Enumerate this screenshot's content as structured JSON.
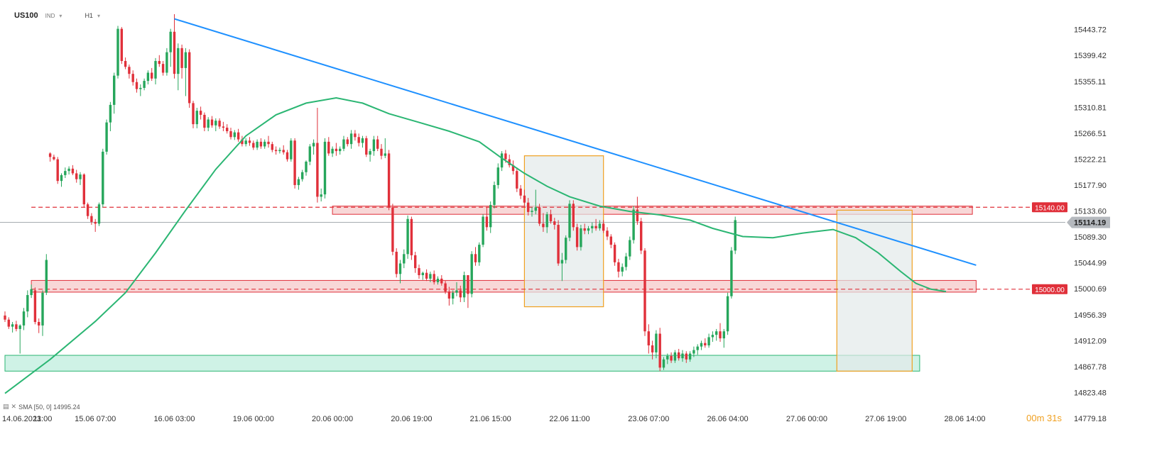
{
  "header": {
    "symbol": "US100",
    "type_tag": "IND",
    "timeframe": "H1"
  },
  "indicator": {
    "label": "SMA [50, 0] 14995.24"
  },
  "timer": {
    "label": "00m 31s"
  },
  "colors": {
    "bull": "#26a65b",
    "bear": "#e0303a",
    "sma": "#2bb673",
    "trend": "#1e90ff",
    "zone_red_fill": "#f6c9c9",
    "zone_red_border": "#e0303a",
    "zone_green_fill": "#bfeedd",
    "zone_green_border": "#2bb673",
    "box_border": "#f0a020",
    "box_fill": "#e3e9ea"
  },
  "chart_data": {
    "type": "candlestick",
    "instrument": "US100",
    "timeframe": "H1",
    "y_axis": {
      "range": [
        14779.18,
        15470
      ],
      "ticks": [
        15443.72,
        15399.42,
        15355.11,
        15310.81,
        15266.51,
        15222.21,
        15177.9,
        15133.6,
        15089.3,
        15044.99,
        15000.69,
        14956.39,
        14912.09,
        14867.78,
        14823.48,
        14779.18
      ],
      "tick_labels": [
        "15443.72",
        "15399.42",
        "15355.11",
        "15310.81",
        "15266.51",
        "15222.21",
        "15177.90",
        "15133.60",
        "15089.30",
        "15044.99",
        "15000.69",
        "14956.39",
        "14912.09",
        "14867.78",
        "14823.48",
        "14779.18"
      ]
    },
    "x_axis": {
      "labels": [
        "14.06.2023",
        "11:00",
        "15.06 07:00",
        "16.06 03:00",
        "19.06 00:00",
        "20.06 00:00",
        "20.06 19:00",
        "21.06 15:00",
        "22.06 11:00",
        "23.06 07:00",
        "26.06 04:00",
        "27.06 00:00",
        "27.06 19:00",
        "28.06 14:00"
      ],
      "label_bar_index": [
        0,
        10,
        24,
        45,
        66,
        87,
        108,
        129,
        150,
        171,
        192,
        213,
        234,
        255
      ]
    },
    "candles_ohlc": [
      [
        14955,
        14962,
        14944,
        14948
      ],
      [
        14948,
        14952,
        14932,
        14936
      ],
      [
        14936,
        14944,
        14926,
        14940
      ],
      [
        14940,
        14946,
        14928,
        14932
      ],
      [
        14932,
        14940,
        14890,
        14938
      ],
      [
        14938,
        14968,
        14930,
        14962
      ],
      [
        14962,
        14998,
        14952,
        14990
      ],
      [
        14990,
        15008,
        14985,
        15000
      ],
      [
        14998,
        15003,
        14940,
        14944
      ],
      [
        14944,
        14950,
        14925,
        14938
      ],
      [
        14938,
        14998,
        14920,
        14994
      ],
      [
        14994,
        15060,
        14990,
        15050
      ],
      [
        15232,
        15234,
        15218,
        15226
      ],
      [
        15226,
        15230,
        15220,
        15222
      ],
      [
        15222,
        15226,
        15180,
        15185
      ],
      [
        15185,
        15198,
        15175,
        15195
      ],
      [
        15195,
        15208,
        15190,
        15202
      ],
      [
        15202,
        15210,
        15196,
        15206
      ],
      [
        15206,
        15212,
        15195,
        15198
      ],
      [
        15198,
        15204,
        15182,
        15188
      ],
      [
        15188,
        15200,
        15178,
        15196
      ],
      [
        15196,
        15198,
        15140,
        15145
      ],
      [
        15145,
        15148,
        15120,
        15125
      ],
      [
        15125,
        15130,
        15110,
        15115
      ],
      [
        15115,
        15120,
        15098,
        15112
      ],
      [
        15112,
        15148,
        15108,
        15145
      ],
      [
        15145,
        15240,
        15140,
        15235
      ],
      [
        15235,
        15290,
        15230,
        15285
      ],
      [
        15285,
        15320,
        15270,
        15315
      ],
      [
        15315,
        15370,
        15300,
        15365
      ],
      [
        15365,
        15450,
        15360,
        15445
      ],
      [
        15445,
        15448,
        15385,
        15390
      ],
      [
        15390,
        15396,
        15376,
        15380
      ],
      [
        15380,
        15384,
        15360,
        15368
      ],
      [
        15368,
        15374,
        15348,
        15354
      ],
      [
        15354,
        15360,
        15336,
        15342
      ],
      [
        15342,
        15350,
        15330,
        15344
      ],
      [
        15344,
        15360,
        15340,
        15356
      ],
      [
        15356,
        15374,
        15350,
        15370
      ],
      [
        15370,
        15378,
        15356,
        15360
      ],
      [
        15360,
        15395,
        15350,
        15390
      ],
      [
        15390,
        15400,
        15380,
        15385
      ],
      [
        15385,
        15390,
        15365,
        15370
      ],
      [
        15370,
        15412,
        15365,
        15405
      ],
      [
        15405,
        15445,
        15380,
        15440
      ],
      [
        15440,
        15470,
        15360,
        15368
      ],
      [
        15368,
        15420,
        15340,
        15412
      ],
      [
        15412,
        15418,
        15360,
        15378
      ],
      [
        15378,
        15412,
        15330,
        15405
      ],
      [
        15405,
        15410,
        15310,
        15318
      ],
      [
        15318,
        15322,
        15275,
        15282
      ],
      [
        15282,
        15310,
        15275,
        15305
      ],
      [
        15305,
        15312,
        15290,
        15298
      ],
      [
        15298,
        15302,
        15270,
        15276
      ],
      [
        15276,
        15294,
        15270,
        15290
      ],
      [
        15290,
        15296,
        15276,
        15280
      ],
      [
        15280,
        15292,
        15270,
        15288
      ],
      [
        15288,
        15292,
        15274,
        15278
      ],
      [
        15278,
        15286,
        15270,
        15276
      ],
      [
        15276,
        15282,
        15266,
        15270
      ],
      [
        15270,
        15276,
        15256,
        15260
      ],
      [
        15260,
        15272,
        15255,
        15268
      ],
      [
        15268,
        15274,
        15252,
        15256
      ],
      [
        15256,
        15262,
        15244,
        15248
      ],
      [
        15248,
        15258,
        15244,
        15254
      ],
      [
        15254,
        15260,
        15245,
        15250
      ],
      [
        15250,
        15254,
        15238,
        15242
      ],
      [
        15242,
        15256,
        15238,
        15252
      ],
      [
        15252,
        15258,
        15240,
        15244
      ],
      [
        15244,
        15256,
        15240,
        15252
      ],
      [
        15252,
        15262,
        15242,
        15248
      ],
      [
        15248,
        15252,
        15234,
        15238
      ],
      [
        15238,
        15244,
        15230,
        15236
      ],
      [
        15236,
        15242,
        15232,
        15238
      ],
      [
        15238,
        15246,
        15230,
        15234
      ],
      [
        15234,
        15238,
        15218,
        15222
      ],
      [
        15222,
        15258,
        15218,
        15254
      ],
      [
        15254,
        15258,
        15172,
        15178
      ],
      [
        15178,
        15192,
        15170,
        15188
      ],
      [
        15188,
        15204,
        15184,
        15200
      ],
      [
        15200,
        15220,
        15194,
        15218
      ],
      [
        15218,
        15248,
        15212,
        15244
      ],
      [
        15244,
        15256,
        15230,
        15250
      ],
      [
        15250,
        15310,
        15148,
        15158
      ],
      [
        15158,
        15172,
        15150,
        15162
      ],
      [
        15162,
        15258,
        15155,
        15252
      ],
      [
        15252,
        15260,
        15228,
        15232
      ],
      [
        15232,
        15244,
        15226,
        15240
      ],
      [
        15240,
        15250,
        15228,
        15236
      ],
      [
        15236,
        15244,
        15230,
        15240
      ],
      [
        15240,
        15262,
        15236,
        15256
      ],
      [
        15256,
        15260,
        15244,
        15248
      ],
      [
        15248,
        15272,
        15240,
        15266
      ],
      [
        15266,
        15272,
        15254,
        15260
      ],
      [
        15260,
        15266,
        15244,
        15250
      ],
      [
        15250,
        15262,
        15242,
        15258
      ],
      [
        15258,
        15262,
        15226,
        15230
      ],
      [
        15230,
        15240,
        15218,
        15236
      ],
      [
        15236,
        15262,
        15228,
        15256
      ],
      [
        15256,
        15262,
        15236,
        15240
      ],
      [
        15240,
        15248,
        15222,
        15228
      ],
      [
        15228,
        15258,
        15224,
        15232
      ],
      [
        15232,
        15238,
        15135,
        15140
      ],
      [
        15140,
        15146,
        15058,
        15064
      ],
      [
        15064,
        15070,
        15020,
        15026
      ],
      [
        15026,
        15050,
        15010,
        15044
      ],
      [
        15044,
        15068,
        15036,
        15060
      ],
      [
        15060,
        15126,
        15052,
        15120
      ],
      [
        15120,
        15124,
        15050,
        15058
      ],
      [
        15058,
        15064,
        15028,
        15036
      ],
      [
        15036,
        15042,
        15018,
        15024
      ],
      [
        15024,
        15030,
        15016,
        15028
      ],
      [
        15028,
        15034,
        15014,
        15018
      ],
      [
        15018,
        15030,
        15012,
        15026
      ],
      [
        15026,
        15032,
        15008,
        15012
      ],
      [
        15012,
        15022,
        15008,
        15018
      ],
      [
        15018,
        15024,
        15006,
        15010
      ],
      [
        15010,
        15014,
        14992,
        14996
      ],
      [
        14996,
        15004,
        14972,
        14984
      ],
      [
        14984,
        14998,
        14974,
        14994
      ],
      [
        14994,
        15012,
        14988,
        14998
      ],
      [
        14998,
        15006,
        14978,
        14986
      ],
      [
        14986,
        15030,
        14978,
        15024
      ],
      [
        15024,
        15004,
        14968,
        14992
      ],
      [
        14992,
        15065,
        14986,
        15060
      ],
      [
        15060,
        15072,
        15040,
        15046
      ],
      [
        15046,
        15080,
        15040,
        15076
      ],
      [
        15076,
        15128,
        15072,
        15124
      ],
      [
        15124,
        15140,
        15100,
        15106
      ],
      [
        15106,
        15150,
        15096,
        15144
      ],
      [
        15144,
        15184,
        15138,
        15178
      ],
      [
        15178,
        15215,
        15172,
        15208
      ],
      [
        15208,
        15236,
        15202,
        15232
      ],
      [
        15232,
        15238,
        15216,
        15222
      ],
      [
        15222,
        15230,
        15208,
        15212
      ],
      [
        15212,
        15220,
        15196,
        15202
      ],
      [
        15202,
        15208,
        15166,
        15172
      ],
      [
        15172,
        15178,
        15154,
        15160
      ],
      [
        15160,
        15170,
        15140,
        15148
      ],
      [
        15148,
        15156,
        15126,
        15132
      ],
      [
        15132,
        15140,
        15124,
        15134
      ],
      [
        15134,
        15170,
        15128,
        15140
      ],
      [
        15140,
        15146,
        15108,
        15112
      ],
      [
        15112,
        15130,
        15098,
        15106
      ],
      [
        15106,
        15132,
        15096,
        15128
      ],
      [
        15128,
        15136,
        15112,
        15116
      ],
      [
        15116,
        15122,
        15102,
        15110
      ],
      [
        15110,
        15118,
        15040,
        15044
      ],
      [
        15044,
        15062,
        15014,
        15050
      ],
      [
        15050,
        15092,
        15044,
        15088
      ],
      [
        15088,
        15152,
        15082,
        15146
      ],
      [
        15146,
        15152,
        15100,
        15106
      ],
      [
        15106,
        15112,
        15066,
        15072
      ],
      [
        15072,
        15110,
        15066,
        15104
      ],
      [
        15104,
        15112,
        15094,
        15100
      ],
      [
        15100,
        15108,
        15094,
        15104
      ],
      [
        15104,
        15114,
        15096,
        15108
      ],
      [
        15108,
        15120,
        15100,
        15104
      ],
      [
        15104,
        15118,
        15100,
        15112
      ],
      [
        15112,
        15118,
        15096,
        15100
      ],
      [
        15100,
        15106,
        15084,
        15090
      ],
      [
        15090,
        15094,
        15070,
        15076
      ],
      [
        15076,
        15080,
        15040,
        15046
      ],
      [
        15046,
        15052,
        15020,
        15030
      ],
      [
        15030,
        15044,
        15022,
        15038
      ],
      [
        15038,
        15062,
        15032,
        15056
      ],
      [
        15056,
        15090,
        15050,
        15084
      ],
      [
        15084,
        15142,
        15078,
        15136
      ],
      [
        15136,
        15158,
        15110,
        15116
      ],
      [
        15116,
        15122,
        15060,
        15066
      ],
      [
        15066,
        15070,
        14920,
        14928
      ],
      [
        14928,
        14940,
        14890,
        14904
      ],
      [
        14904,
        14912,
        14880,
        14892
      ],
      [
        14892,
        14930,
        14882,
        14924
      ],
      [
        14924,
        14934,
        14860,
        14866
      ],
      [
        14866,
        14884,
        14862,
        14880
      ],
      [
        14880,
        14890,
        14872,
        14886
      ],
      [
        14886,
        14892,
        14874,
        14878
      ],
      [
        14878,
        14896,
        14874,
        14892
      ],
      [
        14892,
        14898,
        14878,
        14882
      ],
      [
        14882,
        14896,
        14876,
        14890
      ],
      [
        14890,
        14894,
        14874,
        14880
      ],
      [
        14880,
        14894,
        14876,
        14890
      ],
      [
        14890,
        14902,
        14884,
        14896
      ],
      [
        14896,
        14906,
        14888,
        14902
      ],
      [
        14902,
        14912,
        14896,
        14908
      ],
      [
        14908,
        14916,
        14900,
        14904
      ],
      [
        14904,
        14924,
        14900,
        14918
      ],
      [
        14918,
        14928,
        14910,
        14922
      ],
      [
        14922,
        14932,
        14912,
        14928
      ],
      [
        14928,
        14942,
        14910,
        14916
      ],
      [
        14916,
        14932,
        14900,
        14928
      ],
      [
        14928,
        14994,
        14922,
        14988
      ],
      [
        14988,
        15072,
        14984,
        15066
      ],
      [
        15066,
        15124,
        15060,
        15118
      ]
    ],
    "sma": {
      "name": "SMA [50, 0]",
      "last_value": 14995.24,
      "points": [
        [
          0,
          14822
        ],
        [
          12,
          14880
        ],
        [
          24,
          14945
        ],
        [
          32,
          14994
        ],
        [
          40,
          15062
        ],
        [
          48,
          15135
        ],
        [
          56,
          15205
        ],
        [
          64,
          15262
        ],
        [
          72,
          15298
        ],
        [
          80,
          15318
        ],
        [
          88,
          15327
        ],
        [
          95,
          15318
        ],
        [
          102,
          15300
        ],
        [
          110,
          15285
        ],
        [
          118,
          15270
        ],
        [
          126,
          15252
        ],
        [
          132,
          15224
        ],
        [
          138,
          15198
        ],
        [
          144,
          15176
        ],
        [
          150,
          15158
        ],
        [
          158,
          15142
        ],
        [
          166,
          15133
        ],
        [
          174,
          15127
        ],
        [
          182,
          15118
        ],
        [
          188,
          15104
        ],
        [
          196,
          15090
        ],
        [
          204,
          15088
        ],
        [
          212,
          15096
        ],
        [
          220,
          15102
        ],
        [
          226,
          15088
        ],
        [
          232,
          15062
        ],
        [
          238,
          15030
        ],
        [
          242,
          15010
        ],
        [
          246,
          15000
        ],
        [
          250,
          14996
        ]
      ]
    },
    "trendline": {
      "points": [
        [
          45,
          15462
        ],
        [
          258,
          15041
        ]
      ]
    },
    "horizontal_zones": [
      {
        "color": "red",
        "from_bar": 87,
        "to_bar": 257,
        "y_range": [
          15128,
          15142
        ]
      },
      {
        "color": "red",
        "from_bar": 7,
        "to_bar": 258,
        "y_range": [
          14995,
          15015
        ]
      },
      {
        "color": "green",
        "from_bar": 0,
        "to_bar": 243,
        "y_range": [
          14860,
          14887
        ]
      }
    ],
    "rectangles": [
      {
        "from_bar": 138,
        "to_bar": 159,
        "y_range": [
          14970,
          15228
        ]
      },
      {
        "from_bar": 221,
        "to_bar": 241,
        "y_range": [
          14860,
          15135
        ]
      }
    ],
    "price_levels": [
      {
        "label": "15140.00",
        "value": 15140.0,
        "style": "dashed",
        "color": "#e0303a"
      },
      {
        "label": "15000.00",
        "value": 15000.0,
        "style": "dashed",
        "color": "#e0303a"
      }
    ],
    "current_price": {
      "label": "15114.19",
      "value": 15114.19
    }
  }
}
